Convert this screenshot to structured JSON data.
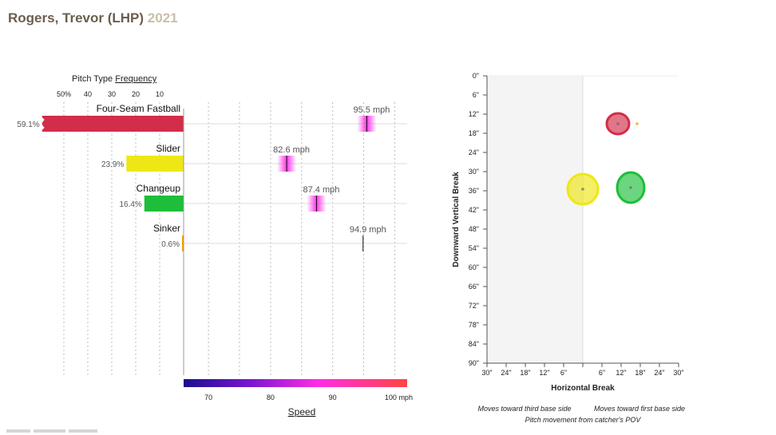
{
  "header": {
    "player": "Rogers, Trevor (LHP)",
    "year": "2021"
  },
  "chart_data": [
    {
      "type": "bar",
      "title": "Pitch Type",
      "title_link": "Frequency",
      "freq_ticks": [
        "50%",
        "40",
        "30",
        "20",
        "10"
      ],
      "speed_ticks": [
        "70",
        "80",
        "90",
        "100 mph"
      ],
      "speed_axis_label": "Speed",
      "speed_domain": [
        66,
        102
      ],
      "pitches": [
        {
          "name": "Four-Seam Fastball",
          "freq": 59.1,
          "freq_label": "59.1%",
          "speed": 95.5,
          "speed_label": "95.5 mph",
          "color": "#d22d49"
        },
        {
          "name": "Slider",
          "freq": 23.9,
          "freq_label": "23.9%",
          "speed": 82.6,
          "speed_label": "82.6 mph",
          "color": "#eee716"
        },
        {
          "name": "Changeup",
          "freq": 16.4,
          "freq_label": "16.4%",
          "speed": 87.4,
          "speed_label": "87.4 mph",
          "color": "#1dbe3a"
        },
        {
          "name": "Sinker",
          "freq": 0.6,
          "freq_label": "0.6%",
          "speed": 94.9,
          "speed_label": "94.9 mph",
          "color": "#fe9d00"
        }
      ]
    },
    {
      "type": "scatter",
      "xlabel": "Horizontal Break",
      "ylabel": "Downward Vertical Break",
      "xlim": [
        -30,
        30
      ],
      "ylim": [
        0,
        90
      ],
      "x_ticks": [
        "30\"",
        "24\"",
        "18\"",
        "12\"",
        "6\"",
        "",
        "6\"",
        "12\"",
        "18\"",
        "24\"",
        "30\""
      ],
      "y_ticks": [
        "0\"",
        "6\"",
        "12\"",
        "18\"",
        "24\"",
        "30\"",
        "36\"",
        "42\"",
        "48\"",
        "54\"",
        "60\"",
        "66\"",
        "72\"",
        "78\"",
        "84\"",
        "90\""
      ],
      "note_left": "Moves toward third base side",
      "note_right": "Moves toward first base side",
      "note_bottom": "Pitch movement from catcher's POV",
      "points": [
        {
          "pitch": "Four-Seam Fastball",
          "x": 11,
          "y": 15,
          "color": "#d22d49"
        },
        {
          "pitch": "Sinker",
          "x": 17,
          "y": 15,
          "color": "#fe9d00"
        },
        {
          "pitch": "Slider",
          "x": 0,
          "y": 35.5,
          "color": "#eee716"
        },
        {
          "pitch": "Changeup",
          "x": 15,
          "y": 35,
          "color": "#1dbe3a"
        }
      ]
    }
  ]
}
